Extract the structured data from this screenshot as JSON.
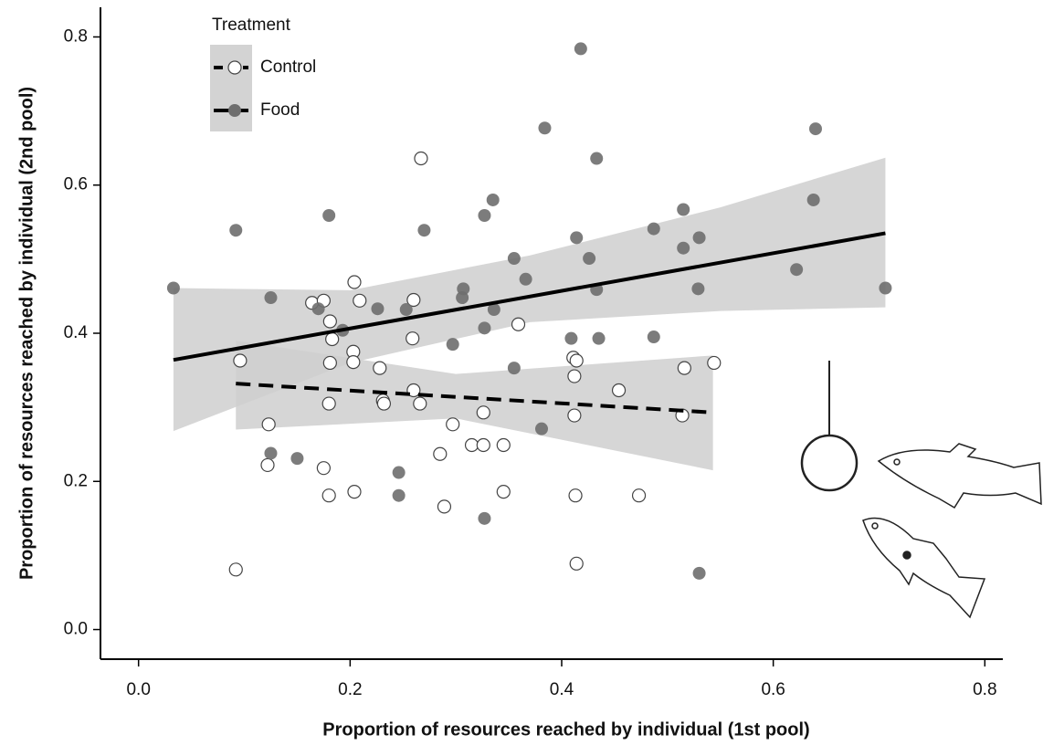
{
  "chart_data": {
    "type": "scatter",
    "x_label": "Proportion of resources reached by individual (1st pool)",
    "y_label": "Proportion of resources reached by individual (2nd pool)",
    "legend_title": "Treatment",
    "legend_position": "top-left",
    "xlim": [
      -0.036,
      0.817
    ],
    "ylim": [
      -0.04,
      0.84
    ],
    "xticks": [
      {
        "value": 0,
        "label": "0.0"
      },
      0.2,
      0.4,
      0.6,
      0.8
    ],
    "yticks": [
      {
        "value": 0,
        "label": "0.0"
      },
      0.2,
      0.4,
      0.6,
      0.8
    ],
    "series": [
      {
        "name": "Control",
        "color": "#555555",
        "marker": "open",
        "line_style": "dashed",
        "x": [
          0.092,
          0.096,
          0.123,
          0.122,
          0.164,
          0.175,
          0.175,
          0.18,
          0.181,
          0.183,
          0.181,
          0.18,
          0.204,
          0.209,
          0.203,
          0.203,
          0.204,
          0.228,
          0.231,
          0.232,
          0.26,
          0.259,
          0.26,
          0.266,
          0.267,
          0.297,
          0.285,
          0.289,
          0.315,
          0.326,
          0.326,
          0.345,
          0.345,
          0.359,
          0.411,
          0.414,
          0.412,
          0.412,
          0.413,
          0.414,
          0.454,
          0.473,
          0.516,
          0.514,
          0.544
        ],
        "y": [
          0.081,
          0.363,
          0.277,
          0.222,
          0.441,
          0.444,
          0.218,
          0.181,
          0.416,
          0.392,
          0.36,
          0.305,
          0.469,
          0.444,
          0.375,
          0.361,
          0.186,
          0.353,
          0.309,
          0.305,
          0.445,
          0.393,
          0.323,
          0.305,
          0.636,
          0.277,
          0.237,
          0.166,
          0.249,
          0.249,
          0.293,
          0.249,
          0.186,
          0.412,
          0.367,
          0.363,
          0.342,
          0.289,
          0.181,
          0.089,
          0.323,
          0.181,
          0.353,
          0.289,
          0.36
        ],
        "fit_x": [
          0.092,
          0.543
        ],
        "fit_y": [
          0.332,
          0.293
        ],
        "band_x": [
          0.092,
          0.3,
          0.543
        ],
        "band_lower": [
          0.27,
          0.285,
          0.215
        ],
        "band_upper": [
          0.39,
          0.345,
          0.37
        ]
      },
      {
        "name": "Food",
        "color": "#6e6e6e",
        "marker": "filled",
        "line_style": "solid",
        "x": [
          0.033,
          0.092,
          0.125,
          0.125,
          0.15,
          0.17,
          0.18,
          0.193,
          0.226,
          0.246,
          0.246,
          0.253,
          0.27,
          0.297,
          0.307,
          0.306,
          0.327,
          0.327,
          0.327,
          0.335,
          0.336,
          0.355,
          0.355,
          0.366,
          0.381,
          0.384,
          0.414,
          0.409,
          0.418,
          0.426,
          0.433,
          0.433,
          0.435,
          0.487,
          0.487,
          0.515,
          0.515,
          0.53,
          0.529,
          0.53,
          0.622,
          0.638,
          0.64,
          0.706
        ],
        "y": [
          0.461,
          0.539,
          0.238,
          0.448,
          0.231,
          0.433,
          0.559,
          0.404,
          0.433,
          0.212,
          0.181,
          0.432,
          0.539,
          0.385,
          0.46,
          0.448,
          0.559,
          0.407,
          0.15,
          0.58,
          0.432,
          0.501,
          0.353,
          0.473,
          0.271,
          0.677,
          0.529,
          0.393,
          0.784,
          0.501,
          0.636,
          0.459,
          0.393,
          0.541,
          0.395,
          0.567,
          0.515,
          0.529,
          0.46,
          0.076,
          0.486,
          0.58,
          0.676,
          0.461
        ],
        "fit_x": [
          0.033,
          0.706
        ],
        "fit_y": [
          0.364,
          0.535
        ],
        "band_x": [
          0.033,
          0.2,
          0.37,
          0.55,
          0.706
        ],
        "band_lower": [
          0.268,
          0.36,
          0.415,
          0.43,
          0.435
        ],
        "band_upper": [
          0.461,
          0.458,
          0.505,
          0.57,
          0.637
        ]
      }
    ]
  }
}
